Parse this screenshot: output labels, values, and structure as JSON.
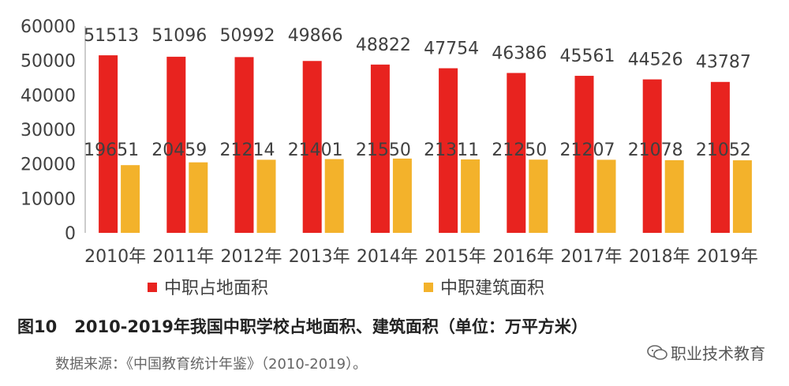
{
  "chart_data": {
    "type": "bar",
    "categories": [
      "2010年",
      "2011年",
      "2012年",
      "2013年",
      "2014年",
      "2015年",
      "2016年",
      "2017年",
      "2018年",
      "2019年"
    ],
    "series": [
      {
        "name": "中职占地面积",
        "color": "#e8231f",
        "values": [
          51513,
          51096,
          50992,
          49866,
          48822,
          47754,
          46386,
          45561,
          44526,
          43787
        ]
      },
      {
        "name": "中职建筑面积",
        "color": "#f3b22b",
        "values": [
          19651,
          20459,
          21214,
          21401,
          21550,
          21311,
          21250,
          21207,
          21078,
          21052
        ]
      }
    ],
    "yticks": [
      "0",
      "10000",
      "20000",
      "30000",
      "40000",
      "50000",
      "60000"
    ],
    "ylim": [
      0,
      60000
    ],
    "grid": false,
    "legend_position": "bottom"
  },
  "caption": {
    "figure_no": "图10",
    "title": "2010-2019年我国中职学校占地面积、建筑面积（单位：万平方米）"
  },
  "source": "数据来源：《中国教育统计年鉴》（2010-2019）。",
  "watermark": {
    "icon": "wechat-icon",
    "text": "职业技术教育"
  }
}
